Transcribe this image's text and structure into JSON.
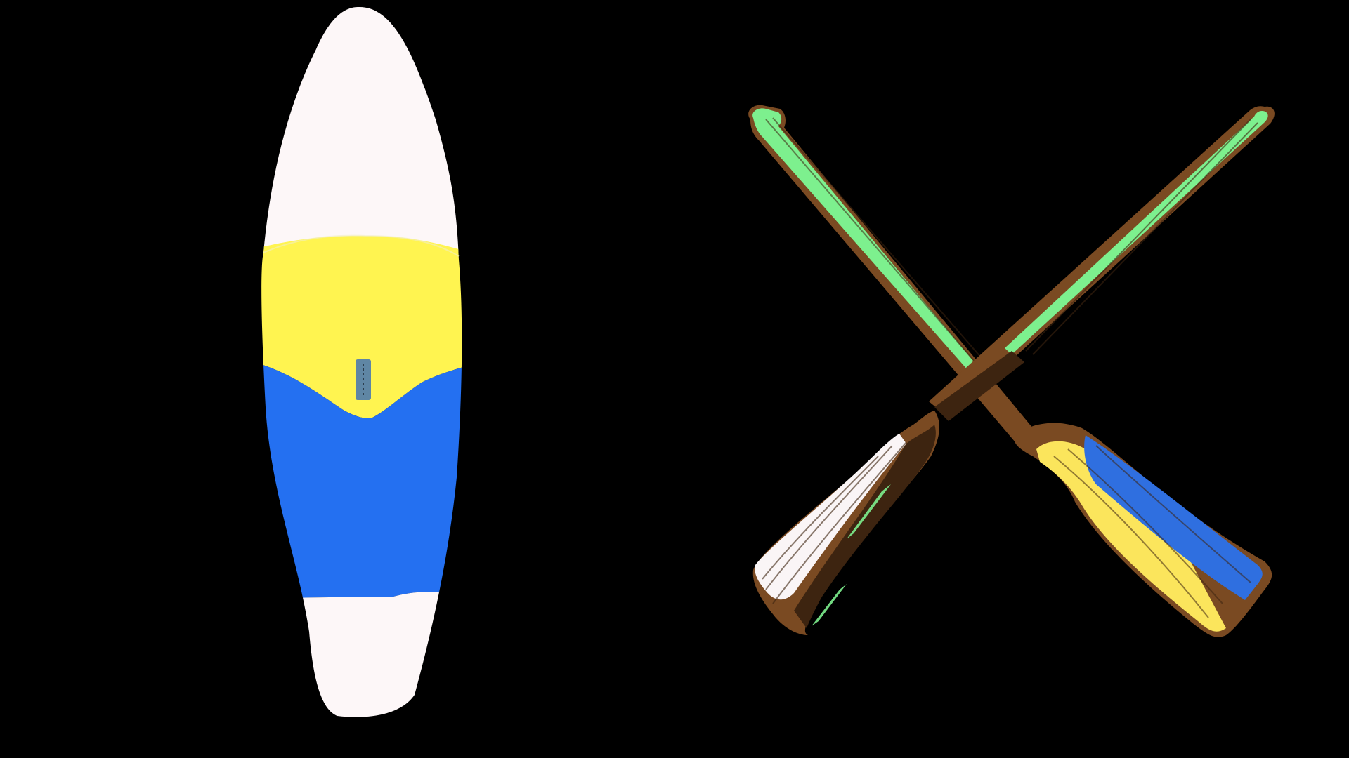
{
  "background_color": "#000000",
  "board": {
    "icon": "paddleboard-icon",
    "colors": {
      "nose": "#fdf7f8",
      "yellow_band": "#fff450",
      "blue_band": "#2470f1",
      "tail": "#fdf7f8",
      "outline": "#f2efc0",
      "handle": "#5f86a4"
    }
  },
  "oars": {
    "icon": "crossed-oars-icon",
    "colors": {
      "wood": "#7a4a22",
      "wood_dark": "#3d2410",
      "green": "#7df08e",
      "white": "#faf5f6",
      "yellow": "#fbe55c",
      "blue": "#2f6fe0"
    }
  }
}
